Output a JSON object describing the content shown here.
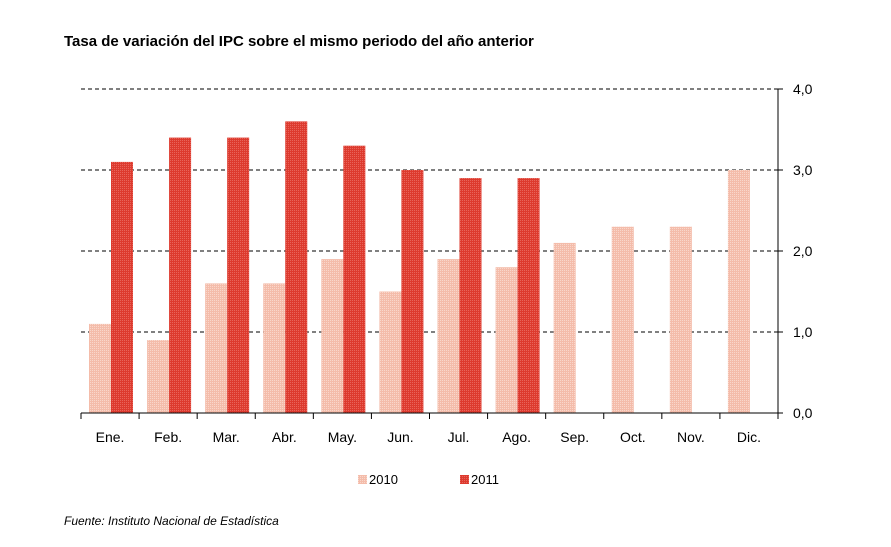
{
  "title": "Tasa de variación del IPC sobre el mismo periodo del año anterior",
  "source": "Fuente: Instituto Nacional de Estadística",
  "colors": {
    "s2010": "#f4bcaa",
    "s2011": "#dd3a2e",
    "grid": "#000000"
  },
  "chart_data": {
    "type": "bar",
    "title": "Tasa de variación del IPC sobre el mismo periodo del año anterior",
    "categories": [
      "Ene.",
      "Feb.",
      "Mar.",
      "Abr.",
      "May.",
      "Jun.",
      "Jul.",
      "Ago.",
      "Sep.",
      "Oct.",
      "Nov.",
      "Dic."
    ],
    "series": [
      {
        "name": "2010",
        "values": [
          1.1,
          0.9,
          1.6,
          1.6,
          1.9,
          1.5,
          1.9,
          1.8,
          2.1,
          2.3,
          2.3,
          3.0
        ]
      },
      {
        "name": "2011",
        "values": [
          3.1,
          3.4,
          3.4,
          3.6,
          3.3,
          3.0,
          2.9,
          2.9,
          null,
          null,
          null,
          null
        ]
      }
    ],
    "yticks": [
      "0,0",
      "1,0",
      "2,0",
      "3,0",
      "4,0"
    ],
    "ylim": [
      0,
      4
    ],
    "y_axis_side": "right",
    "grid": true,
    "grid_style": "dashed",
    "legend_position": "bottom-center"
  }
}
